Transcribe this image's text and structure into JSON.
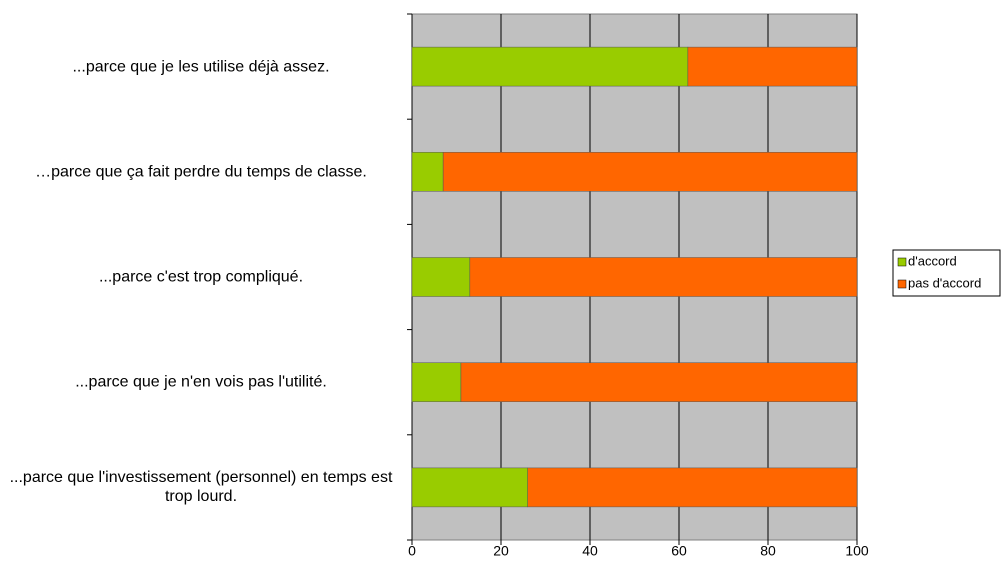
{
  "chart_data": {
    "type": "stacked_bar_horizontal",
    "categories": [
      "...parce que je les utilise déjà assez.",
      "…parce que ça fait perdre du temps de classe.",
      "...parce c'est trop compliqué.",
      "...parce que je n'en vois pas l'utilité.",
      "...parce que l'investissement (personnel) en temps est trop lourd."
    ],
    "series": [
      {
        "name": "d'accord",
        "color": "#99cc00",
        "values": [
          62,
          7,
          13,
          11,
          26
        ]
      },
      {
        "name": "pas d'accord",
        "color": "#ff6600",
        "values": [
          38,
          93,
          87,
          89,
          74
        ]
      }
    ],
    "xlim": [
      0,
      100
    ],
    "xticks": [
      0,
      20,
      40,
      60,
      80,
      100
    ],
    "grid": true,
    "legend": "right"
  }
}
